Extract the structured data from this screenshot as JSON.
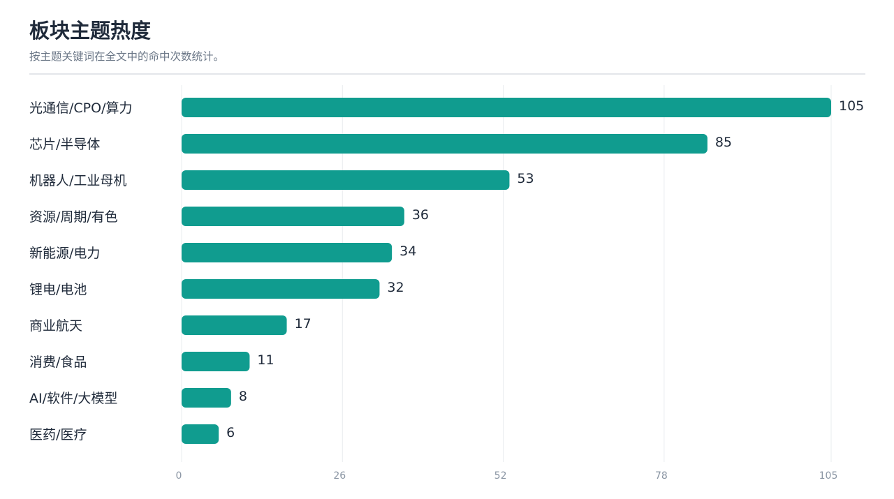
{
  "header": {
    "title": "板块主题热度",
    "subtitle": "按主题关键词在全文中的命中次数统计。"
  },
  "chart_data": {
    "type": "bar",
    "orientation": "horizontal",
    "title": "板块主题热度",
    "subtitle": "按主题关键词在全文中的命中次数统计。",
    "categories": [
      "光通信/CPO/算力",
      "芯片/半导体",
      "机器人/工业母机",
      "资源/周期/有色",
      "新能源/电力",
      "锂电/电池",
      "商业航天",
      "消费/食品",
      "AI/软件/大模型",
      "医药/医疗"
    ],
    "values": [
      105,
      85,
      53,
      36,
      34,
      32,
      17,
      11,
      8,
      6
    ],
    "xticks": [
      0,
      26,
      52,
      78,
      105
    ],
    "xlim": [
      0,
      105
    ],
    "xlabel": "",
    "ylabel": "",
    "grid": "vertical",
    "legend": "none",
    "bar_color": "#109c8f"
  }
}
